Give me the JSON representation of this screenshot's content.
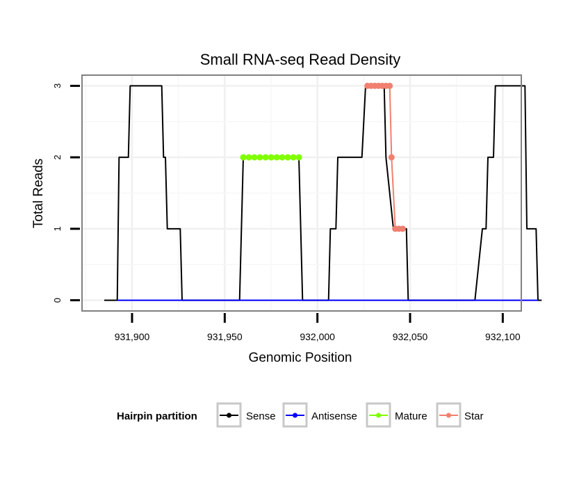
{
  "chart_data": {
    "type": "line",
    "title": "Small RNA-seq Read Density",
    "xlabel": "Genomic Position",
    "ylabel": "Total Reads",
    "xlim": [
      931873,
      932110
    ],
    "ylim": [
      -0.15,
      3.15
    ],
    "x_ticks": [
      931900,
      931950,
      932000,
      932050,
      932100
    ],
    "x_tick_labels": [
      "931,900",
      "931,950",
      "932,000",
      "932,050",
      "932,100"
    ],
    "y_ticks": [
      0,
      1,
      2,
      3
    ],
    "y_tick_labels": [
      "0",
      "1",
      "2",
      "3"
    ],
    "grid": true,
    "legend": {
      "title": "Hairpin partition",
      "position": "bottom",
      "entries": [
        "Sense",
        "Antisense",
        "Mature",
        "Star"
      ]
    },
    "series": [
      {
        "name": "Sense",
        "color": "#000000",
        "x": [
          931885,
          931892,
          931893,
          931898,
          931899,
          931916,
          931917,
          931918,
          931919,
          931926,
          931927,
          931943,
          931958,
          931960,
          931990,
          931992,
          932000,
          932006,
          932007,
          932010,
          932011,
          932012,
          932013,
          932024,
          932026,
          932027,
          932036,
          932037,
          932041,
          932048,
          932049,
          932083,
          932085,
          932089,
          932091,
          932092,
          932095,
          932096,
          932101,
          932102,
          932112,
          932113,
          932118,
          932119,
          932121
        ],
        "y": [
          0,
          0,
          2,
          2,
          3,
          3,
          2,
          2,
          1,
          1,
          0,
          0,
          0,
          2,
          2,
          0,
          0,
          0,
          1,
          1,
          2,
          2,
          2,
          2,
          3,
          3,
          3,
          2,
          1,
          1,
          0,
          0,
          0,
          1,
          1,
          2,
          2,
          3,
          3,
          3,
          3,
          1,
          1,
          0,
          0
        ]
      },
      {
        "name": "Antisense",
        "color": "#0000ff",
        "x": [
          931892,
          931926,
          931961,
          931990,
          932010,
          932049,
          932084,
          932119
        ],
        "y": [
          0,
          0,
          0,
          0,
          0,
          0,
          0,
          0
        ]
      },
      {
        "name": "Mature",
        "color": "#7fff00",
        "x": [
          931960,
          931963,
          931966,
          931969,
          931972,
          931975,
          931978,
          931981,
          931984,
          931987,
          931990
        ],
        "y": [
          2,
          2,
          2,
          2,
          2,
          2,
          2,
          2,
          2,
          2,
          2
        ]
      },
      {
        "name": "Star",
        "color": "#f08070",
        "x": [
          932027,
          932029,
          932031,
          932033,
          932035,
          932037,
          932039,
          932040,
          932042,
          932044,
          932046
        ],
        "y": [
          3,
          3,
          3,
          3,
          3,
          3,
          3,
          2,
          1,
          1,
          1
        ]
      }
    ]
  }
}
